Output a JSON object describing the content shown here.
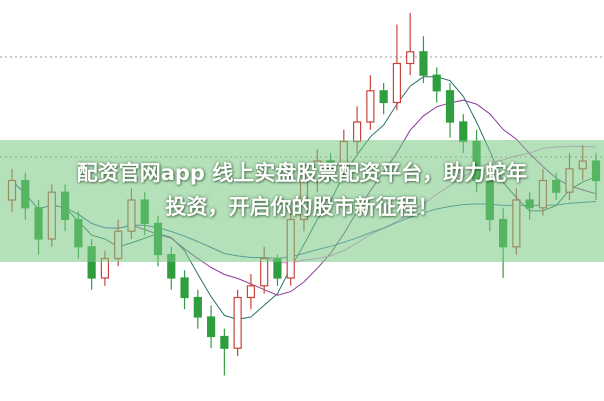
{
  "caption": {
    "line1": "配资官网app 线上实盘股票配资平台，助力蛇年",
    "line2": "投资，开启你的股市新征程！"
  },
  "chart_data": {
    "type": "candlestick",
    "grid": "dotted horizontal",
    "colors": {
      "up": "#c8443c",
      "down": "#2e9e3e",
      "ma_short": "#2b6f6a",
      "ma_mid": "#8a3a9a",
      "ma_long": "#e08adf",
      "ma_trend": "#3a7bb0",
      "band": "#8fd09a"
    },
    "moving_averages": [
      5,
      10,
      20,
      40
    ],
    "open": [
      50,
      55,
      48,
      40,
      52,
      45,
      38,
      30,
      35,
      42,
      50,
      44,
      36,
      30,
      25,
      20,
      15,
      12,
      25,
      28,
      35,
      30,
      45,
      55,
      60,
      58,
      65,
      70,
      78,
      75,
      85,
      88,
      82,
      78,
      70,
      65,
      55,
      45,
      38,
      50,
      48,
      55,
      52,
      58,
      60
    ],
    "close": [
      55,
      48,
      40,
      52,
      45,
      38,
      30,
      35,
      42,
      50,
      44,
      36,
      30,
      25,
      20,
      15,
      12,
      25,
      28,
      35,
      30,
      45,
      55,
      60,
      58,
      65,
      70,
      78,
      75,
      85,
      88,
      82,
      78,
      70,
      65,
      55,
      45,
      38,
      50,
      48,
      55,
      52,
      58,
      60,
      55
    ],
    "high": [
      58,
      57,
      50,
      54,
      54,
      47,
      40,
      37,
      45,
      53,
      52,
      46,
      38,
      32,
      27,
      23,
      17,
      27,
      31,
      38,
      36,
      48,
      58,
      63,
      62,
      68,
      74,
      82,
      80,
      95,
      98,
      92,
      84,
      80,
      72,
      68,
      58,
      48,
      53,
      52,
      58,
      57,
      62,
      64,
      62
    ],
    "low": [
      47,
      45,
      36,
      38,
      42,
      35,
      27,
      28,
      33,
      40,
      41,
      33,
      27,
      22,
      17,
      12,
      5,
      10,
      22,
      26,
      28,
      28,
      42,
      52,
      55,
      56,
      62,
      68,
      72,
      73,
      82,
      80,
      75,
      66,
      62,
      52,
      42,
      30,
      36,
      45,
      46,
      50,
      50,
      55,
      50
    ]
  }
}
